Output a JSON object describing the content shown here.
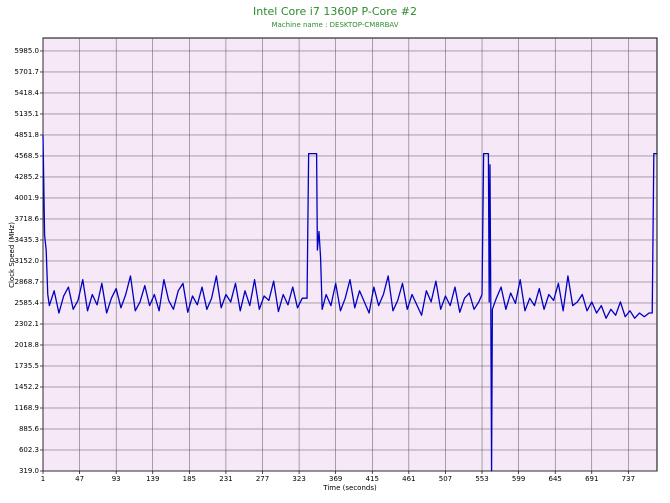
{
  "chart_data": {
    "type": "line",
    "title": "Intel Core i7 1360P P-Core #2",
    "subtitle": "Machine name : DESKTOP-CM8RBAV",
    "x_label": "Time (seconds)",
    "y_label": "Clock Speed (MHz)",
    "color": "#0000c0",
    "background": "#f7e8f8",
    "grid": true,
    "xlim": [
      1,
      773
    ],
    "ylim": [
      319,
      6160
    ],
    "xticks": [
      1,
      47,
      93,
      139,
      185,
      231,
      277,
      323,
      369,
      415,
      461,
      507,
      553,
      599,
      645,
      691,
      737
    ],
    "yticks": [
      {
        "value": 319,
        "label": "319.0"
      },
      {
        "value": 602.3,
        "label": "602.3"
      },
      {
        "value": 885.6,
        "label": "885.6"
      },
      {
        "value": 1168.9,
        "label": "1168.9"
      },
      {
        "value": 1452.2,
        "label": "1452.2"
      },
      {
        "value": 1735.5,
        "label": "1735.5"
      },
      {
        "value": 2018.8,
        "label": "2018.8"
      },
      {
        "value": 2302.1,
        "label": "2302.1"
      },
      {
        "value": 2585.4,
        "label": "2585.4"
      },
      {
        "value": 2868.7,
        "label": "2868.7"
      },
      {
        "value": 3152,
        "label": "3152.0"
      },
      {
        "value": 3435.3,
        "label": "3435.3"
      },
      {
        "value": 3718.6,
        "label": "3718.6"
      },
      {
        "value": 4001.9,
        "label": "4001.9"
      },
      {
        "value": 4285.2,
        "label": "4285.2"
      },
      {
        "value": 4568.5,
        "label": "4568.5"
      },
      {
        "value": 4851.8,
        "label": "4851.8"
      },
      {
        "value": 5135.1,
        "label": "5135.1"
      },
      {
        "value": 5418.4,
        "label": "5418.4"
      },
      {
        "value": 5701.7,
        "label": "5701.7"
      },
      {
        "value": 5985,
        "label": "5985.0"
      }
    ],
    "x": [
      1,
      3,
      5,
      7,
      9,
      15,
      21,
      27,
      33,
      39,
      45,
      51,
      57,
      63,
      69,
      75,
      81,
      87,
      93,
      99,
      105,
      111,
      117,
      123,
      129,
      135,
      141,
      147,
      153,
      159,
      165,
      171,
      177,
      183,
      189,
      195,
      201,
      207,
      213,
      219,
      225,
      231,
      237,
      243,
      249,
      255,
      261,
      267,
      273,
      279,
      285,
      291,
      297,
      303,
      309,
      315,
      321,
      327,
      333,
      335,
      345,
      346,
      348,
      350,
      352,
      357,
      363,
      369,
      375,
      381,
      387,
      393,
      399,
      405,
      411,
      417,
      423,
      429,
      435,
      441,
      447,
      453,
      459,
      465,
      471,
      477,
      483,
      489,
      495,
      501,
      507,
      513,
      519,
      525,
      531,
      537,
      543,
      549,
      553,
      555,
      561,
      562,
      563,
      564,
      565,
      566,
      571,
      577,
      583,
      589,
      595,
      601,
      607,
      613,
      619,
      625,
      631,
      637,
      643,
      649,
      655,
      661,
      667,
      673,
      679,
      685,
      691,
      697,
      703,
      709,
      715,
      721,
      727,
      733,
      739,
      745,
      751,
      757,
      763,
      767,
      769,
      773
    ],
    "values": [
      4850,
      3500,
      3300,
      2700,
      2550,
      2750,
      2450,
      2680,
      2800,
      2500,
      2620,
      2900,
      2480,
      2700,
      2560,
      2850,
      2450,
      2650,
      2780,
      2520,
      2700,
      2950,
      2480,
      2600,
      2820,
      2550,
      2700,
      2480,
      2900,
      2620,
      2500,
      2750,
      2850,
      2460,
      2680,
      2560,
      2800,
      2500,
      2650,
      2950,
      2520,
      2700,
      2600,
      2850,
      2480,
      2750,
      2550,
      2900,
      2500,
      2680,
      2620,
      2880,
      2470,
      2700,
      2560,
      2800,
      2520,
      2650,
      2650,
      4600,
      4600,
      3300,
      3550,
      3200,
      2500,
      2700,
      2550,
      2850,
      2480,
      2650,
      2900,
      2520,
      2750,
      2600,
      2450,
      2800,
      2550,
      2700,
      2950,
      2480,
      2620,
      2850,
      2500,
      2700,
      2560,
      2420,
      2750,
      2600,
      2880,
      2500,
      2680,
      2550,
      2800,
      2460,
      2650,
      2720,
      2500,
      2600,
      2700,
      4600,
      4600,
      2600,
      4450,
      2650,
      319,
      2500,
      2650,
      2800,
      2500,
      2720,
      2580,
      2900,
      2480,
      2650,
      2550,
      2780,
      2500,
      2700,
      2620,
      2850,
      2480,
      2950,
      2550,
      2600,
      2700,
      2480,
      2600,
      2450,
      2550,
      2380,
      2500,
      2420,
      2600,
      2400,
      2480,
      2380,
      2450,
      2400,
      2450,
      2450,
      4600,
      4600
    ]
  }
}
